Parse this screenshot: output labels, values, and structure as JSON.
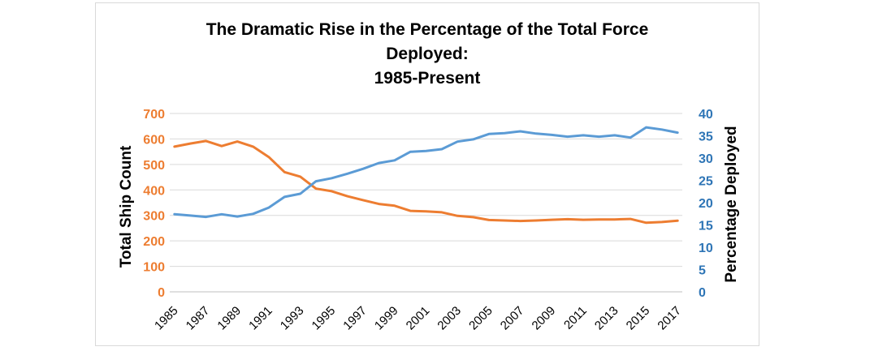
{
  "chart_data": {
    "type": "line",
    "title_lines": [
      "The Dramatic Rise in the Percentage of the Total Force",
      "Deployed:",
      "1985-Present"
    ],
    "x": [
      1985,
      1986,
      1987,
      1988,
      1989,
      1990,
      1991,
      1992,
      1993,
      1994,
      1995,
      1996,
      1997,
      1998,
      1999,
      2000,
      2001,
      2002,
      2003,
      2004,
      2005,
      2006,
      2007,
      2008,
      2009,
      2010,
      2011,
      2012,
      2013,
      2014,
      2015,
      2016,
      2017
    ],
    "x_tick_labels": [
      "1985",
      "1987",
      "1989",
      "1991",
      "1993",
      "1995",
      "1997",
      "1999",
      "2001",
      "2003",
      "2005",
      "2007",
      "2009",
      "2011",
      "2013",
      "2015",
      "2017"
    ],
    "y_left": {
      "label": "Total Ship Count",
      "range": [
        0,
        700
      ],
      "ticks": [
        "0",
        "100",
        "200",
        "300",
        "400",
        "500",
        "600",
        "700"
      ],
      "color": "#ed7d31"
    },
    "y_right": {
      "label": "Percentage Deployed",
      "range": [
        0,
        40
      ],
      "ticks": [
        "0",
        "5",
        "10",
        "15",
        "20",
        "25",
        "30",
        "35",
        "40"
      ],
      "color": "#2e75b6"
    },
    "grid": true,
    "series": [
      {
        "axis": "left",
        "color": "#ed7d31",
        "values": [
          570,
          582,
          592,
          572,
          590,
          570,
          529,
          470,
          452,
          405,
          395,
          375,
          360,
          345,
          338,
          318,
          316,
          312,
          298,
          293,
          282,
          280,
          278,
          280,
          283,
          285,
          283,
          284,
          284,
          286,
          271,
          274,
          279
        ]
      },
      {
        "axis": "right",
        "color": "#5b9bd5",
        "values": [
          17.4,
          17.1,
          16.8,
          17.4,
          16.9,
          17.5,
          18.9,
          21.3,
          22.0,
          24.8,
          25.5,
          26.5,
          27.6,
          28.9,
          29.5,
          31.4,
          31.6,
          32.0,
          33.7,
          34.2,
          35.4,
          35.6,
          36.0,
          35.5,
          35.2,
          34.8,
          35.1,
          34.8,
          35.1,
          34.6,
          36.9,
          36.4,
          35.7
        ]
      }
    ]
  }
}
